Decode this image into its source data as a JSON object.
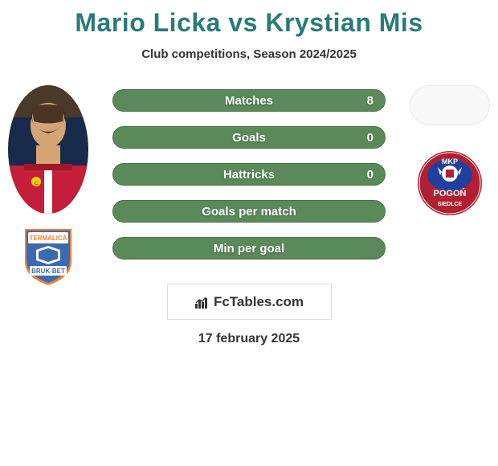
{
  "title": "Mario Licka vs Krystian Mis",
  "title_color": "#2a7a7a",
  "subtitle": "Club competitions, Season 2024/2025",
  "subtitle_color": "#333333",
  "background_color": "#ffffff",
  "bars": [
    {
      "label": "Matches",
      "value_left": "",
      "value_right": "8",
      "fill_pct": 100,
      "bg": "#5a8a5a",
      "fill": "#5a8a5a"
    },
    {
      "label": "Goals",
      "value_left": "",
      "value_right": "0",
      "fill_pct": 100,
      "bg": "#5a8a5a",
      "fill": "#5a8a5a"
    },
    {
      "label": "Hattricks",
      "value_left": "",
      "value_right": "0",
      "fill_pct": 100,
      "bg": "#5a8a5a",
      "fill": "#5a8a5a"
    },
    {
      "label": "Goals per match",
      "value_left": "",
      "value_right": "",
      "fill_pct": 100,
      "bg": "#5a8a5a",
      "fill": "#5a8a5a"
    },
    {
      "label": "Min per goal",
      "value_left": "",
      "value_right": "",
      "fill_pct": 100,
      "bg": "#5a8a5a",
      "fill": "#5a8a5a"
    }
  ],
  "bar_border_color": "#467046",
  "player_left": {
    "name": "Mario Licka",
    "avatar_bg": "#8a3030",
    "club": {
      "name": "Termalica Bruk-Bet",
      "badge_bg": "#3a6ab0",
      "badge_accent": "#f08030",
      "badge_text_top": "TERMALICA",
      "badge_text_bottom": "BRUK-BET"
    }
  },
  "player_right": {
    "name": "Krystian Mis",
    "avatar_blank": true,
    "club": {
      "name": "MKP Pogon Siedlce",
      "badge_bg": "#b02030",
      "badge_accent": "#2040a0",
      "badge_text_top": "MKP",
      "badge_text_mid": "POGOŃ",
      "badge_text_bottom": "SIEDLCE"
    }
  },
  "footer_brand": "FcTables.com",
  "footer_date": "17 february 2025",
  "footer_date_color": "#333333"
}
